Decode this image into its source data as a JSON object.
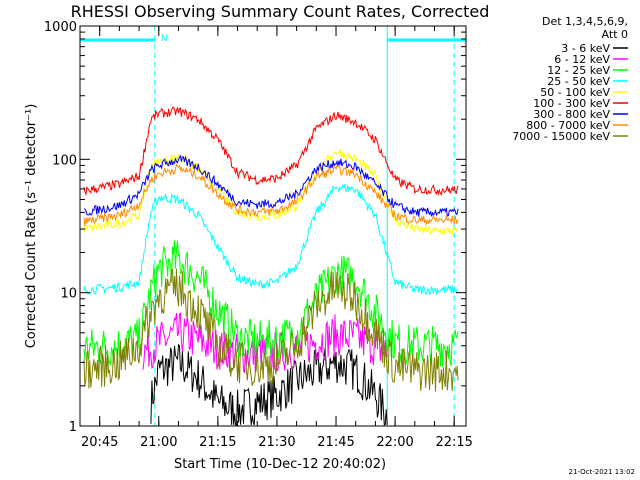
{
  "chart_data": {
    "type": "line",
    "title": "RHESSI Observing Summary Count Rates, Corrected",
    "xlabel": "Start Time (10-Dec-12 20:40:02)",
    "ylabel": "Corrected Count Rate (s⁻¹ detector⁻¹)",
    "yscale": "log",
    "ylim": [
      1,
      1000
    ],
    "yticks": [
      "1",
      "10",
      "100",
      "1000"
    ],
    "xlim": [
      "20:40",
      "22:18"
    ],
    "xticks": [
      "20:45",
      "21:00",
      "21:15",
      "21:30",
      "21:45",
      "22:00",
      "22:15"
    ],
    "legend_header": [
      "Det 1,3,4,5,6,9,",
      "Att 0"
    ],
    "legend_position": "right",
    "footer_stamp": "21-Oct-2021 13:02",
    "flag_marker": "N",
    "night_intervals": [
      [
        "20:40",
        "20:59"
      ],
      [
        "21:58",
        "22:18"
      ]
    ],
    "vlines": [
      "20:59",
      "21:58",
      "22:15"
    ],
    "series": [
      {
        "name": "3 - 6 keV",
        "color": "#000000",
        "points": [
          [
            "20:58",
            1.5
          ],
          [
            "21:00",
            2.6
          ],
          [
            "21:05",
            3.0
          ],
          [
            "21:10",
            2.3
          ],
          [
            "21:15",
            1.5
          ],
          [
            "21:20",
            1.3
          ],
          [
            "21:25",
            1.5
          ],
          [
            "21:30",
            1.7
          ],
          [
            "21:35",
            2.2
          ],
          [
            "21:40",
            2.6
          ],
          [
            "21:45",
            3.0
          ],
          [
            "21:50",
            2.6
          ],
          [
            "21:55",
            1.7
          ],
          [
            "21:58",
            1.2
          ]
        ]
      },
      {
        "name": "6 - 12 keV",
        "color": "#ff00ff",
        "points": [
          [
            "20:56",
            3.6
          ],
          [
            "21:00",
            4.2
          ],
          [
            "21:05",
            5.0
          ],
          [
            "21:10",
            4.4
          ],
          [
            "21:15",
            3.8
          ],
          [
            "21:20",
            3.5
          ],
          [
            "21:25",
            3.5
          ],
          [
            "21:30",
            3.6
          ],
          [
            "21:35",
            3.8
          ],
          [
            "21:40",
            4.3
          ],
          [
            "21:45",
            4.8
          ],
          [
            "21:50",
            4.6
          ],
          [
            "21:55",
            4.0
          ],
          [
            "21:58",
            3.6
          ]
        ]
      },
      {
        "name": "12 - 25 keV",
        "color": "#00ff00",
        "points": [
          [
            "20:41",
            3.8
          ],
          [
            "20:50",
            4.0
          ],
          [
            "20:55",
            4.5
          ],
          [
            "20:58",
            10
          ],
          [
            "21:00",
            15
          ],
          [
            "21:05",
            18
          ],
          [
            "21:10",
            13
          ],
          [
            "21:15",
            7.5
          ],
          [
            "21:20",
            4.6
          ],
          [
            "21:25",
            4.3
          ],
          [
            "21:30",
            4.4
          ],
          [
            "21:35",
            5.0
          ],
          [
            "21:40",
            9.0
          ],
          [
            "21:45",
            14
          ],
          [
            "21:50",
            13
          ],
          [
            "21:55",
            7.0
          ],
          [
            "22:00",
            4.2
          ],
          [
            "22:05",
            4.0
          ],
          [
            "22:10",
            4.0
          ],
          [
            "22:16",
            4.0
          ]
        ]
      },
      {
        "name": "25 - 50 keV",
        "color": "#00ffff",
        "points": [
          [
            "20:41",
            10.5
          ],
          [
            "20:50",
            11
          ],
          [
            "20:55",
            12
          ],
          [
            "20:58",
            40
          ],
          [
            "21:00",
            52
          ],
          [
            "21:05",
            50
          ],
          [
            "21:10",
            38
          ],
          [
            "21:15",
            22
          ],
          [
            "21:20",
            13
          ],
          [
            "21:25",
            11.5
          ],
          [
            "21:30",
            12
          ],
          [
            "21:35",
            16
          ],
          [
            "21:40",
            40
          ],
          [
            "21:45",
            62
          ],
          [
            "21:50",
            60
          ],
          [
            "21:55",
            38
          ],
          [
            "22:00",
            12
          ],
          [
            "22:05",
            10.5
          ],
          [
            "22:10",
            10.5
          ],
          [
            "22:16",
            10.5
          ]
        ]
      },
      {
        "name": "50 - 100 keV",
        "color": "#ffff00",
        "points": [
          [
            "20:41",
            30
          ],
          [
            "20:50",
            33
          ],
          [
            "20:55",
            38
          ],
          [
            "20:58",
            90
          ],
          [
            "21:00",
            95
          ],
          [
            "21:05",
            105
          ],
          [
            "21:10",
            85
          ],
          [
            "21:15",
            60
          ],
          [
            "21:20",
            40
          ],
          [
            "21:25",
            37
          ],
          [
            "21:30",
            38
          ],
          [
            "21:35",
            45
          ],
          [
            "21:40",
            80
          ],
          [
            "21:45",
            115
          ],
          [
            "21:50",
            100
          ],
          [
            "21:55",
            75
          ],
          [
            "22:00",
            35
          ],
          [
            "22:05",
            30
          ],
          [
            "22:10",
            29
          ],
          [
            "22:16",
            29
          ]
        ]
      },
      {
        "name": "100 - 300 keV",
        "color": "#ff0000",
        "points": [
          [
            "20:41",
            58
          ],
          [
            "20:50",
            65
          ],
          [
            "20:55",
            75
          ],
          [
            "20:58",
            200
          ],
          [
            "21:00",
            220
          ],
          [
            "21:05",
            230
          ],
          [
            "21:10",
            200
          ],
          [
            "21:15",
            140
          ],
          [
            "21:20",
            80
          ],
          [
            "21:25",
            70
          ],
          [
            "21:30",
            72
          ],
          [
            "21:35",
            90
          ],
          [
            "21:40",
            170
          ],
          [
            "21:45",
            215
          ],
          [
            "21:50",
            190
          ],
          [
            "21:55",
            140
          ],
          [
            "22:00",
            70
          ],
          [
            "22:05",
            60
          ],
          [
            "22:10",
            59
          ],
          [
            "22:16",
            59
          ]
        ]
      },
      {
        "name": "300 - 800 keV",
        "color": "#0000ff",
        "points": [
          [
            "20:41",
            40
          ],
          [
            "20:50",
            45
          ],
          [
            "20:55",
            55
          ],
          [
            "20:58",
            82
          ],
          [
            "21:00",
            90
          ],
          [
            "21:05",
            100
          ],
          [
            "21:10",
            88
          ],
          [
            "21:15",
            65
          ],
          [
            "21:20",
            48
          ],
          [
            "21:25",
            46
          ],
          [
            "21:30",
            47
          ],
          [
            "21:35",
            55
          ],
          [
            "21:40",
            85
          ],
          [
            "21:45",
            95
          ],
          [
            "21:50",
            88
          ],
          [
            "21:55",
            65
          ],
          [
            "22:00",
            45
          ],
          [
            "22:05",
            40
          ],
          [
            "22:10",
            40
          ],
          [
            "22:16",
            40
          ]
        ]
      },
      {
        "name": "800 - 7000 keV",
        "color": "#ff8c00",
        "points": [
          [
            "20:41",
            34
          ],
          [
            "20:50",
            38
          ],
          [
            "20:55",
            46
          ],
          [
            "20:58",
            70
          ],
          [
            "21:00",
            78
          ],
          [
            "21:05",
            86
          ],
          [
            "21:10",
            76
          ],
          [
            "21:15",
            55
          ],
          [
            "21:20",
            42
          ],
          [
            "21:25",
            40
          ],
          [
            "21:30",
            41
          ],
          [
            "21:35",
            48
          ],
          [
            "21:40",
            74
          ],
          [
            "21:45",
            84
          ],
          [
            "21:50",
            78
          ],
          [
            "21:55",
            56
          ],
          [
            "22:00",
            38
          ],
          [
            "22:05",
            35
          ],
          [
            "22:10",
            35
          ],
          [
            "22:16",
            35
          ]
        ]
      },
      {
        "name": "7000 - 15000 keV",
        "color": "#808000",
        "points": [
          [
            "20:41",
            2.6
          ],
          [
            "20:50",
            3.0
          ],
          [
            "20:55",
            4.0
          ],
          [
            "20:58",
            7.0
          ],
          [
            "21:00",
            9.5
          ],
          [
            "21:05",
            11
          ],
          [
            "21:10",
            7.5
          ],
          [
            "21:15",
            4.0
          ],
          [
            "21:20",
            3.0
          ],
          [
            "21:25",
            2.8
          ],
          [
            "21:30",
            3.0
          ],
          [
            "21:35",
            4.0
          ],
          [
            "21:40",
            8.0
          ],
          [
            "21:45",
            11
          ],
          [
            "21:50",
            9.0
          ],
          [
            "21:55",
            5.0
          ],
          [
            "22:00",
            2.8
          ],
          [
            "22:05",
            2.6
          ],
          [
            "22:10",
            2.6
          ],
          [
            "22:16",
            2.6
          ]
        ]
      }
    ]
  },
  "colors": {
    "flags": "#00ffff",
    "axes": "#000000"
  }
}
